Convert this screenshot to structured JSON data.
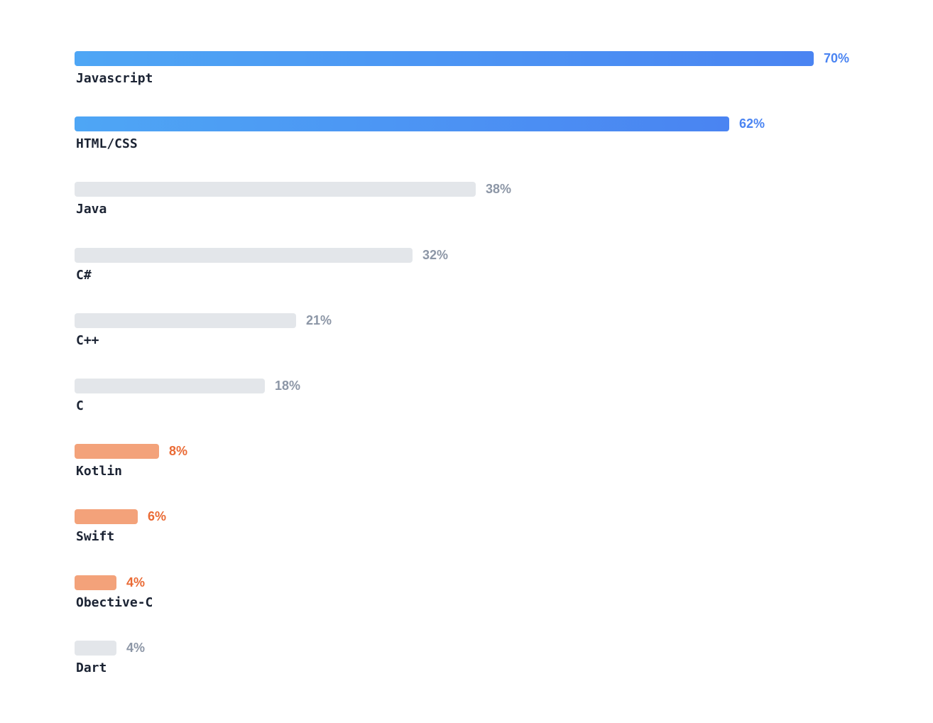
{
  "chart_data": {
    "type": "bar",
    "orientation": "horizontal",
    "categories": [
      "Javascript",
      "HTML/CSS",
      "Java",
      "C#",
      "C++",
      "C",
      "Kotlin",
      "Swift",
      "Obective-C",
      "Dart"
    ],
    "values": [
      70,
      62,
      38,
      32,
      21,
      18,
      8,
      6,
      4,
      4
    ],
    "value_labels": [
      "70%",
      "62%",
      "38%",
      "32%",
      "21%",
      "18%",
      "8%",
      "6%",
      "4%",
      "4%"
    ],
    "groups": [
      "blue",
      "blue",
      "gray",
      "gray",
      "gray",
      "gray",
      "orange",
      "orange",
      "orange",
      "gray"
    ],
    "colors": {
      "blue": "#4a84f2",
      "gray": "#e3e6ea",
      "orange": "#f3a27a"
    },
    "xlim": [
      0,
      70
    ],
    "grid": false,
    "legend": "none",
    "title": "",
    "xlabel": "",
    "ylabel": ""
  }
}
